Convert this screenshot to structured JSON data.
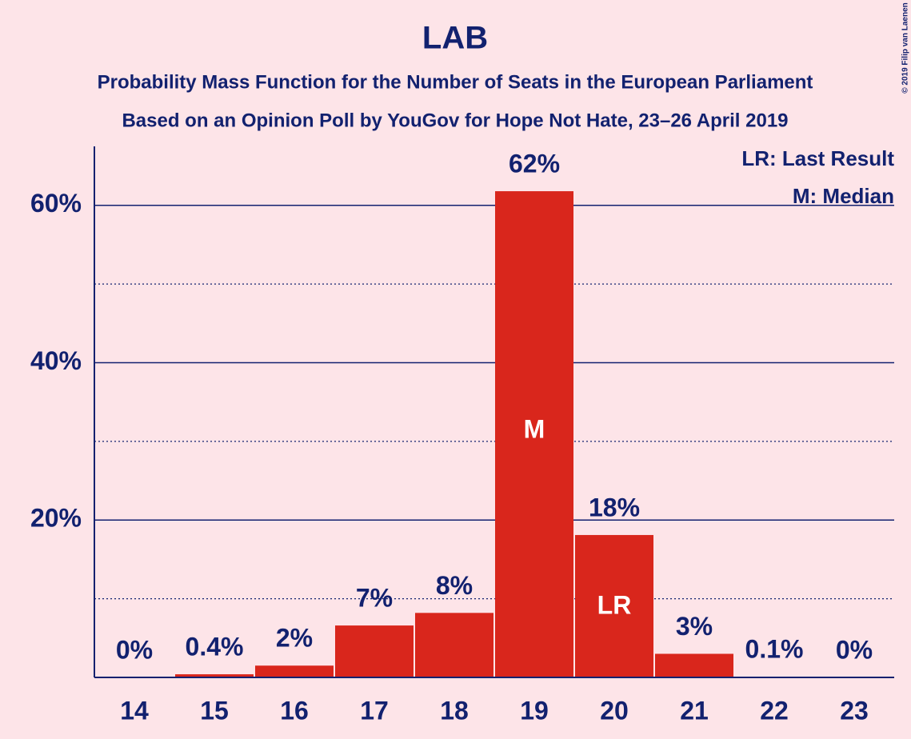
{
  "chart_data": {
    "type": "bar",
    "title": "LAB",
    "subtitle": [
      "Probability Mass Function for the Number of Seats in the European Parliament",
      "Based on an Opinion Poll by YouGov for Hope Not Hate, 23–26 April 2019"
    ],
    "credit": "© 2019 Filip van Laenen",
    "categories": [
      "14",
      "15",
      "16",
      "17",
      "18",
      "19",
      "20",
      "21",
      "22",
      "23"
    ],
    "values": [
      0,
      0.4,
      1.5,
      6.6,
      8.2,
      61.8,
      18.1,
      3.0,
      0.1,
      0
    ],
    "value_labels": [
      "0%",
      "0.4%",
      "2%",
      "7%",
      "8%",
      "62%",
      "18%",
      "3%",
      "0.1%",
      "0%"
    ],
    "color": "#d9261c",
    "ylim": [
      0,
      67.5
    ],
    "yticks": [
      {
        "value": 20,
        "label": "20%"
      },
      {
        "value": 40,
        "label": "40%"
      },
      {
        "value": 60,
        "label": "60%"
      }
    ],
    "minor_gridlines": [
      10,
      30,
      50
    ],
    "grid": true,
    "median": {
      "label": "M",
      "category": "19"
    },
    "last_result": {
      "label": "LR",
      "category": "20"
    },
    "legend": [
      "LR: Last Result",
      "M: Median"
    ],
    "legend_position": "upper right"
  }
}
